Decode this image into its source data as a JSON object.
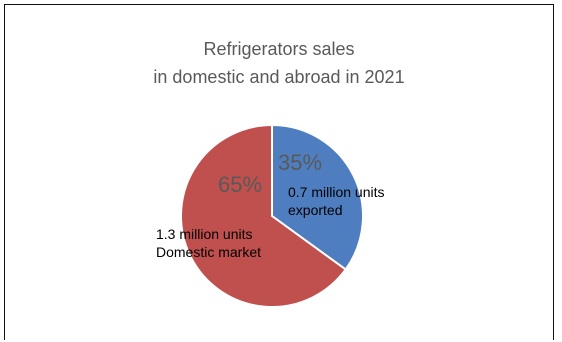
{
  "title_line1": "Refrigerators sales",
  "title_line2": "in domestic and abroad in 2021",
  "chart_data": {
    "type": "pie",
    "title": "Refrigerators sales in domestic and abroad in 2021",
    "slices": [
      {
        "percent": 35,
        "percent_label": "35%",
        "label_lines": [
          "0.7 million units",
          "exported"
        ],
        "value": 0.7,
        "color": "#4F7EC0"
      },
      {
        "percent": 65,
        "percent_label": "65%",
        "label_lines": [
          "1.3 million units",
          "Domestic market"
        ],
        "value": 1.3,
        "color": "#C0504D"
      }
    ],
    "slice_border_color": "#ffffff"
  }
}
